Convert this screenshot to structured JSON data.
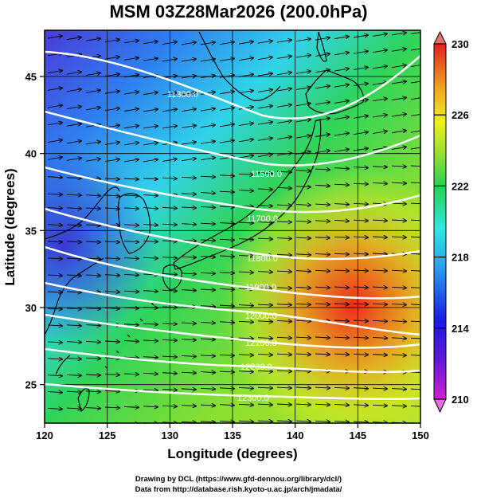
{
  "title": "MSM 03Z28Mar2026 (200.0hPa)",
  "x_axis": {
    "label": "Longitude (degrees)",
    "ticks": [
      "120",
      "125",
      "130",
      "135",
      "140",
      "145",
      "150"
    ],
    "range": [
      120,
      150
    ]
  },
  "y_axis": {
    "label": "Latitude  (degrees)",
    "ticks": [
      "25",
      "30",
      "35",
      "40",
      "45"
    ],
    "range": [
      22.5,
      48
    ]
  },
  "colorbar": {
    "min": 210,
    "max": 230,
    "labels": [
      "230",
      "226",
      "222",
      "218",
      "214",
      "210"
    ],
    "colors": [
      "#d020d0",
      "#1a1ae0",
      "#2aa6f0",
      "#30e8e0",
      "#28d050",
      "#a0e030",
      "#f0f020",
      "#f0a020",
      "#f04020",
      "#e02020"
    ]
  },
  "contours": [
    {
      "label": "11300.0"
    },
    {
      "label": "11500.0"
    },
    {
      "label": "11700.0"
    },
    {
      "label": "11800.0"
    },
    {
      "label": "11900.0"
    },
    {
      "label": "12000.0"
    },
    {
      "label": "12100.0"
    },
    {
      "label": "12200.0"
    },
    {
      "label": "12300.0"
    }
  ],
  "credits": {
    "line1": "Drawing by DCL (https://www.gfd-dennou.org/library/dcl/)",
    "line2": "Data from http://database.rish.kyoto-u.ac.jp/arch/jmadata/"
  }
}
